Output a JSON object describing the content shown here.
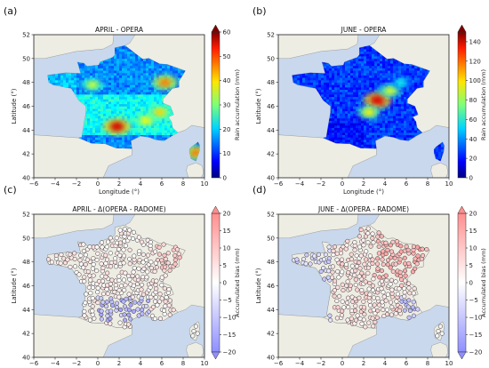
{
  "chart_data": [
    {
      "type": "heatmap",
      "panel_label": "(a)",
      "title": "APRIL - OPERA",
      "xlabel": "Longitude (°)",
      "ylabel": "Latitude (°)",
      "xlim": [
        -6,
        10
      ],
      "ylim": [
        40,
        52
      ],
      "xticks": [
        "−6",
        "−4",
        "−2",
        "0",
        "2",
        "4",
        "6",
        "8",
        "10"
      ],
      "yticks": [
        "40",
        "42",
        "44",
        "46",
        "48",
        "50",
        "52"
      ],
      "colorbar": {
        "label": "Rain accumulation (mm)",
        "range": [
          0,
          60
        ],
        "ticks": [
          "0",
          "10",
          "20",
          "30",
          "40",
          "50",
          "60"
        ],
        "colormap": "jet",
        "extend": "max"
      },
      "hotspots": [
        {
          "lon": 1.8,
          "lat": 44.3,
          "value": 55
        },
        {
          "lon": 6.3,
          "lat": 48.0,
          "value": 45
        },
        {
          "lon": 5.8,
          "lat": 45.5,
          "value": 40
        },
        {
          "lon": -0.5,
          "lat": 47.8,
          "value": 35
        },
        {
          "lon": 4.5,
          "lat": 44.8,
          "value": 38
        },
        {
          "lon": 9.2,
          "lat": 42.1,
          "value": 45
        }
      ]
    },
    {
      "type": "heatmap",
      "panel_label": "(b)",
      "title": "JUNE - OPERA",
      "xlabel": "Longitude (°)",
      "ylabel": "Latitude (°)",
      "xlim": [
        -6,
        10
      ],
      "ylim": [
        40,
        52
      ],
      "xticks": [
        "−6",
        "−4",
        "−2",
        "0",
        "2",
        "4",
        "6",
        "8",
        "10"
      ],
      "yticks": [
        "40",
        "42",
        "44",
        "46",
        "48",
        "50",
        "52"
      ],
      "colorbar": {
        "label": "Rain accumulation (mm)",
        "range": [
          0,
          150
        ],
        "ticks": [
          "0",
          "20",
          "40",
          "60",
          "80",
          "100",
          "120",
          "140"
        ],
        "colormap": "jet",
        "extend": "max"
      },
      "hotspots": [
        {
          "lon": 3.3,
          "lat": 46.5,
          "value": 135
        },
        {
          "lon": 2.5,
          "lat": 45.5,
          "value": 95
        },
        {
          "lon": 4.5,
          "lat": 47.3,
          "value": 90
        },
        {
          "lon": 5.5,
          "lat": 48.0,
          "value": 60
        }
      ]
    },
    {
      "type": "scatter",
      "panel_label": "(c)",
      "title": "APRIL - Δ(OPERA - RADOME)",
      "xlabel": "Longitude (°)",
      "ylabel": "Latitude (°)",
      "xlim": [
        -6,
        10
      ],
      "ylim": [
        40,
        52
      ],
      "xticks": [
        "−6",
        "−4",
        "−2",
        "0",
        "2",
        "4",
        "6",
        "8",
        "10"
      ],
      "yticks": [
        "40",
        "42",
        "44",
        "46",
        "48",
        "50",
        "52"
      ],
      "colorbar": {
        "label": "Accumulated bias (mm)",
        "range": [
          -20,
          20
        ],
        "ticks": [
          "−20",
          "−15",
          "−10",
          "−5",
          "0",
          "5",
          "10",
          "15",
          "20"
        ],
        "colormap": "bwr",
        "extend": "both"
      },
      "pattern": "rain-gauge stations across France; mostly small positive bias, negative (blue) bias concentrated in south-central France (lat 43–45)"
    },
    {
      "type": "scatter",
      "panel_label": "(d)",
      "title": "JUNE - Δ(OPERA - RADOME)",
      "xlabel": "Longitude (°)",
      "ylabel": "Latitude (°)",
      "xlim": [
        -6,
        10
      ],
      "ylim": [
        40,
        52
      ],
      "xticks": [
        "−6",
        "−4",
        "−2",
        "0",
        "2",
        "4",
        "6",
        "8",
        "10"
      ],
      "yticks": [
        "40",
        "42",
        "44",
        "46",
        "48",
        "50",
        "52"
      ],
      "colorbar": {
        "label": "Accumulated bias (mm)",
        "range": [
          -20,
          20
        ],
        "ticks": [
          "−20",
          "−15",
          "−10",
          "−5",
          "0",
          "5",
          "10",
          "15",
          "20"
        ],
        "colormap": "bwr",
        "extend": "both"
      },
      "pattern": "rain-gauge stations across France; mostly positive (red) bias in the north-east, negative (blue) bias in the west and south-east"
    }
  ],
  "colors": {
    "sea": "#c9d8ec",
    "land": "#eeede3",
    "coast": "#8a8a8a"
  }
}
